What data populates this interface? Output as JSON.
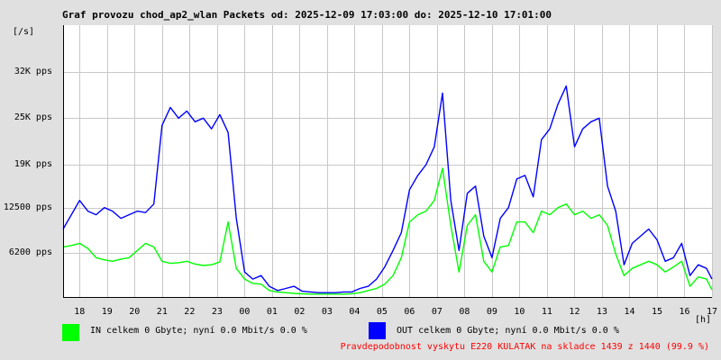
{
  "chart_data": {
    "type": "line",
    "title": "Graf provozu chod_ap2_wlan Packets od: 2025-12-09 17:03:00 do: 2025-12-10 17:01:00",
    "yunit": "[/s]",
    "xunit": "[h]",
    "ytick_labels": [
      "32K pps",
      "25K pps",
      "19K pps",
      "12500 pps",
      "6200 pps"
    ],
    "ytick_values": [
      31500,
      25000,
      18500,
      12500,
      6200
    ],
    "ylim": [
      0,
      38000
    ],
    "xlim": [
      17.4,
      41.0
    ],
    "xtick_labels": [
      "18",
      "19",
      "20",
      "21",
      "22",
      "23",
      "00",
      "01",
      "02",
      "03",
      "04",
      "05",
      "06",
      "07",
      "08",
      "09",
      "10",
      "11",
      "12",
      "13",
      "14",
      "15",
      "16",
      "17"
    ],
    "xtick_values": [
      18,
      19,
      20,
      21,
      22,
      23,
      24,
      25,
      26,
      27,
      28,
      29,
      30,
      31,
      32,
      33,
      34,
      35,
      36,
      37,
      38,
      39,
      40,
      41
    ],
    "grid": true,
    "series": [
      {
        "name": "OUT",
        "color": "#0000ff",
        "x": [
          17.4,
          17.7,
          18.0,
          18.3,
          18.6,
          18.9,
          19.2,
          19.5,
          19.8,
          20.1,
          20.4,
          20.7,
          21.0,
          21.3,
          21.6,
          21.9,
          22.2,
          22.5,
          22.8,
          23.1,
          23.4,
          23.7,
          24.0,
          24.3,
          24.6,
          24.9,
          25.2,
          25.5,
          25.8,
          26.1,
          26.4,
          26.7,
          27.0,
          27.3,
          27.6,
          27.9,
          28.2,
          28.5,
          28.8,
          29.1,
          29.4,
          29.7,
          30.0,
          30.3,
          30.6,
          30.9,
          31.2,
          31.5,
          31.8,
          32.1,
          32.4,
          32.7,
          33.0,
          33.3,
          33.6,
          33.9,
          34.2,
          34.5,
          34.8,
          35.1,
          35.4,
          35.7,
          36.0,
          36.3,
          36.6,
          36.9,
          37.2,
          37.5,
          37.8,
          38.1,
          38.4,
          38.7,
          39.0,
          39.3,
          39.6,
          39.9,
          40.2,
          40.5,
          40.8,
          41.0
        ],
        "values": [
          9500,
          11500,
          13500,
          12000,
          11500,
          12500,
          12000,
          11000,
          11500,
          12000,
          11800,
          13000,
          24000,
          26500,
          25000,
          26000,
          24500,
          25000,
          23500,
          25500,
          23000,
          11000,
          3500,
          2500,
          3000,
          1500,
          900,
          1200,
          1500,
          800,
          700,
          600,
          600,
          600,
          700,
          700,
          1200,
          1500,
          2500,
          4200,
          6500,
          9000,
          15000,
          17000,
          18500,
          21000,
          28500,
          13500,
          6500,
          14500,
          15500,
          8500,
          5500,
          11000,
          12500,
          16500,
          17000,
          14000,
          22000,
          23500,
          27000,
          29500,
          21000,
          23500,
          24500,
          25000,
          15500,
          12000,
          4500,
          7500,
          8500,
          9500,
          8000,
          5000,
          5500,
          7500,
          3000,
          4500,
          4000,
          2500
        ]
      },
      {
        "name": "IN",
        "color": "#00ff00",
        "x": [
          17.4,
          17.7,
          18.0,
          18.3,
          18.6,
          18.9,
          19.2,
          19.5,
          19.8,
          20.1,
          20.4,
          20.7,
          21.0,
          21.3,
          21.6,
          21.9,
          22.2,
          22.5,
          22.8,
          23.1,
          23.4,
          23.7,
          24.0,
          24.3,
          24.6,
          24.9,
          25.2,
          25.5,
          25.8,
          26.1,
          26.4,
          26.7,
          27.0,
          27.3,
          27.6,
          27.9,
          28.2,
          28.5,
          28.8,
          29.1,
          29.4,
          29.7,
          30.0,
          30.3,
          30.6,
          30.9,
          31.2,
          31.5,
          31.8,
          32.1,
          32.4,
          32.7,
          33.0,
          33.3,
          33.6,
          33.9,
          34.2,
          34.5,
          34.8,
          35.1,
          35.4,
          35.7,
          36.0,
          36.3,
          36.6,
          36.9,
          37.2,
          37.5,
          37.8,
          38.1,
          38.4,
          38.7,
          39.0,
          39.3,
          39.6,
          39.9,
          40.2,
          40.5,
          40.8,
          41.0
        ],
        "values": [
          7000,
          7200,
          7500,
          6800,
          5500,
          5200,
          5000,
          5300,
          5500,
          6500,
          7500,
          7000,
          5000,
          4700,
          4800,
          5000,
          4600,
          4400,
          4500,
          4900,
          10500,
          4000,
          2500,
          1900,
          1800,
          900,
          700,
          600,
          500,
          450,
          400,
          400,
          400,
          400,
          400,
          450,
          600,
          900,
          1200,
          1800,
          3000,
          5500,
          10500,
          11500,
          12000,
          13500,
          18000,
          10000,
          3500,
          10000,
          11500,
          5000,
          3500,
          7000,
          7200,
          10500,
          10500,
          9000,
          12000,
          11500,
          12500,
          13000,
          11500,
          12000,
          11000,
          11500,
          10000,
          6000,
          3000,
          4000,
          4500,
          5000,
          4500,
          3500,
          4200,
          5000,
          1500,
          2800,
          2500,
          1000
        ]
      }
    ]
  },
  "legend": {
    "in_text": "IN celkem 0 Gbyte; nyní   0.0 Mbit/s 0.0 %",
    "in_color": "#00ff00",
    "out_text": "OUT celkem 0 Gbyte; nyní   0.0 Mbit/s 0.0 %",
    "out_color": "#0000ff"
  },
  "note": "Pravdepodobnost vyskytu E220 KULATAK na skladce 1439 z 1440 (99.9 %)"
}
